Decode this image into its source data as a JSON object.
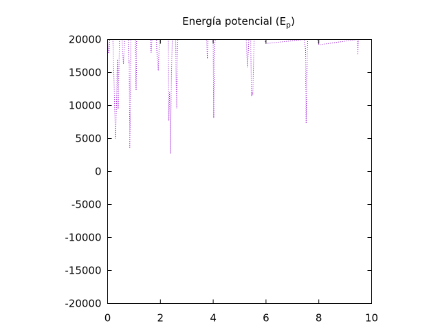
{
  "chart_data": {
    "type": "line",
    "title_main": "Energía potencial (E",
    "title_sub": "p",
    "title_close": ")",
    "xlabel": "",
    "ylabel": "",
    "xlim": [
      0,
      10
    ],
    "ylim": [
      -20000,
      20000
    ],
    "xticks": [
      0,
      2,
      4,
      6,
      8,
      10
    ],
    "yticks": [
      -20000,
      -15000,
      -10000,
      -5000,
      0,
      5000,
      10000,
      15000,
      20000
    ],
    "grid": false,
    "legend": "none",
    "series": [
      {
        "style": "dotted",
        "color": "#9400d3",
        "x": [
          0.0,
          0.03,
          0.05,
          0.07,
          0.08,
          0.2,
          0.25,
          0.28,
          0.3,
          0.33,
          0.35,
          0.37,
          0.4,
          0.45,
          0.55,
          0.6,
          0.65,
          0.78,
          0.8,
          0.82,
          0.84,
          0.86,
          0.88,
          1.05,
          1.08,
          1.1,
          1.62,
          1.65,
          1.68,
          1.85,
          1.88,
          1.92,
          1.95,
          1.98,
          2.3,
          2.32,
          2.35,
          2.37,
          2.38,
          2.4,
          2.42,
          2.45,
          2.58,
          2.6,
          2.62,
          2.64,
          2.66,
          2.7,
          3.75,
          3.78,
          3.8,
          3.98,
          4.0,
          4.02,
          4.03,
          4.05,
          4.08,
          5.25,
          5.3,
          5.35,
          5.42,
          5.45,
          5.48,
          5.5,
          5.52,
          5.55,
          5.95,
          6.0,
          7.45,
          7.5,
          7.52,
          7.55,
          7.58,
          7.95,
          8.0,
          9.45,
          9.48,
          9.5
        ],
        "y": [
          20000,
          18000,
          17900,
          19000,
          20000,
          20000,
          12800,
          8000,
          5000,
          9000,
          13000,
          17000,
          9500,
          20000,
          20000,
          16300,
          20000,
          20000,
          16500,
          16800,
          3600,
          8000,
          20000,
          20000,
          12300,
          20000,
          20000,
          18000,
          20000,
          20000,
          17000,
          15300,
          18500,
          20000,
          20000,
          7700,
          12000,
          8000,
          2700,
          9000,
          15000,
          20000,
          20000,
          12800,
          9600,
          18000,
          20000,
          20000,
          20000,
          17100,
          20000,
          20000,
          19300,
          8100,
          12000,
          19000,
          20000,
          20000,
          15800,
          20000,
          20000,
          11400,
          12000,
          11600,
          15000,
          20000,
          20000,
          19400,
          20000,
          18500,
          7300,
          15000,
          20000,
          20000,
          19200,
          20000,
          17700,
          20000
        ]
      }
    ]
  }
}
